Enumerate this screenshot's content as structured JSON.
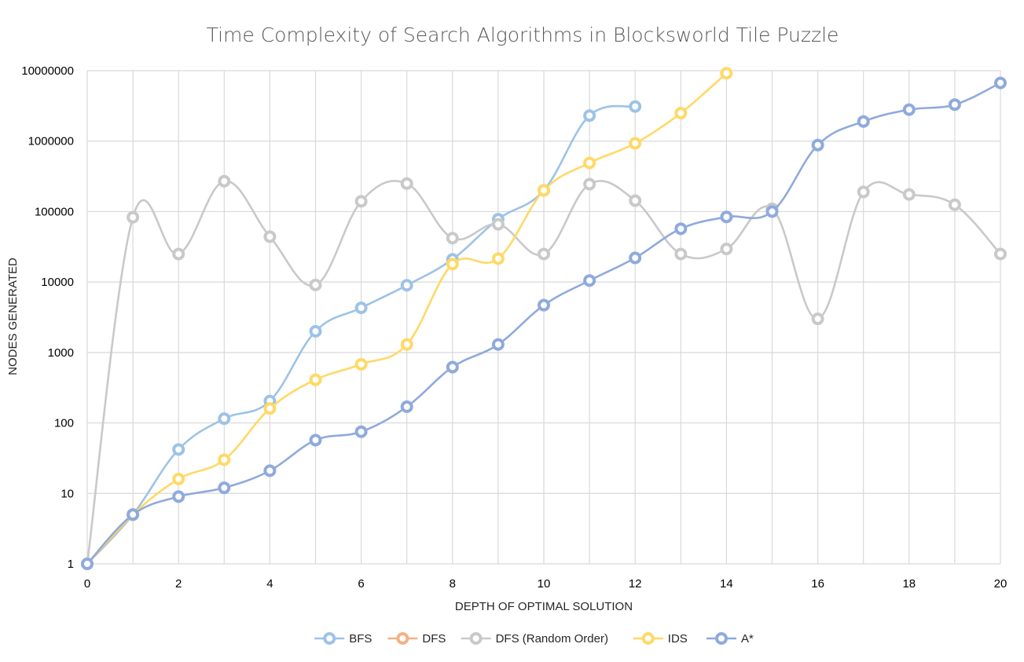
{
  "chart_data": {
    "type": "line",
    "title": "Time Complexity of Search Algorithms in Blocksworld Tile Puzzle",
    "xlabel": "DEPTH OF OPTIMAL SOLUTION",
    "ylabel": "NODES GENERATED",
    "x_ticks": [
      "0",
      "2",
      "4",
      "6",
      "8",
      "10",
      "12",
      "14",
      "16",
      "18",
      "20"
    ],
    "y_ticks": [
      "1",
      "10",
      "100",
      "1000",
      "10000",
      "100000",
      "1000000",
      "10000000"
    ],
    "xlim": [
      0,
      20
    ],
    "ylim": [
      1,
      10000000
    ],
    "y_scale": "log",
    "grid": true,
    "legend_position": "bottom",
    "series": [
      {
        "name": "BFS",
        "color": "#9dc3e6",
        "x": [
          0,
          1,
          2,
          3,
          4,
          5,
          6,
          7,
          8,
          9,
          10,
          11,
          12
        ],
        "values": [
          1,
          5,
          42,
          115,
          205,
          2000,
          4300,
          9000,
          21000,
          78000,
          200000,
          2300000,
          3100000
        ]
      },
      {
        "name": "DFS",
        "color": "#f4b183",
        "x": [
          0,
          1
        ],
        "values": [
          1,
          5
        ]
      },
      {
        "name": "DFS (Random Order)",
        "color": "#c9c9c9",
        "x": [
          0,
          1,
          2,
          3,
          4,
          5,
          6,
          7,
          8,
          9,
          10,
          11,
          12,
          13,
          14,
          15,
          16,
          17,
          18,
          19,
          20
        ],
        "values": [
          1,
          83000,
          25000,
          270000,
          44000,
          9100,
          140000,
          250000,
          42000,
          66000,
          25000,
          245000,
          143000,
          25000,
          29500,
          110000,
          3000,
          190000,
          175000,
          125000,
          25000
        ]
      },
      {
        "name": "IDS",
        "color": "#ffd966",
        "x": [
          0,
          1,
          2,
          3,
          4,
          5,
          6,
          7,
          8,
          9,
          10,
          11,
          12,
          13,
          14
        ],
        "values": [
          1,
          5,
          16,
          30,
          160,
          410,
          680,
          1300,
          18000,
          21500,
          200000,
          490000,
          930000,
          2500000,
          9200000
        ]
      },
      {
        "name": "A*",
        "color": "#8faadc",
        "x": [
          0,
          1,
          2,
          3,
          4,
          5,
          6,
          7,
          8,
          9,
          10,
          11,
          12,
          13,
          14,
          15,
          16,
          17,
          18,
          19,
          20
        ],
        "values": [
          1,
          5,
          9,
          12,
          21,
          57,
          75,
          170,
          620,
          1300,
          4700,
          10500,
          22000,
          57000,
          84000,
          100000,
          880000,
          1900000,
          2800000,
          3300000,
          6700000
        ]
      }
    ]
  }
}
